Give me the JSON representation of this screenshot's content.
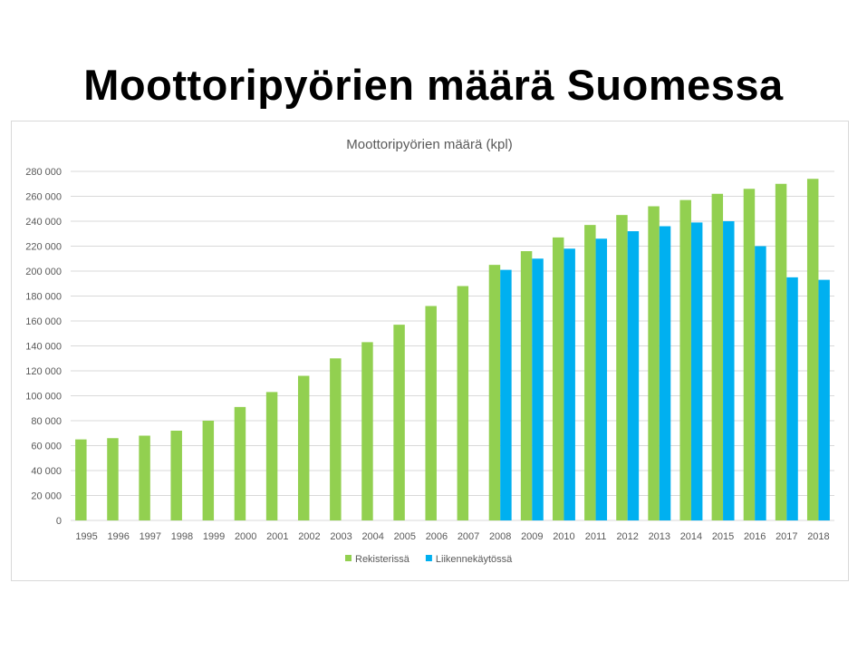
{
  "slide": {
    "title": "Moottoripyörien määrä Suomessa"
  },
  "chart_data": {
    "type": "bar",
    "title": "Moottoripyörien määrä (kpl)",
    "xlabel": "",
    "ylabel": "",
    "ylim": [
      0,
      280000
    ],
    "yticks": [
      "0",
      "20 000",
      "40 000",
      "60 000",
      "80 000",
      "100 000",
      "120 000",
      "140 000",
      "160 000",
      "180 000",
      "200 000",
      "220 000",
      "240 000",
      "260 000",
      "280 000"
    ],
    "grid": true,
    "legend_position": "bottom",
    "categories": [
      "1995",
      "1996",
      "1997",
      "1998",
      "1999",
      "2000",
      "2001",
      "2002",
      "2003",
      "2004",
      "2005",
      "2006",
      "2007",
      "2008",
      "2009",
      "2010",
      "2011",
      "2012",
      "2013",
      "2014",
      "2015",
      "2016",
      "2017",
      "2018"
    ],
    "series": [
      {
        "name": "Rekisterissä",
        "color": "#92d050",
        "values": [
          65000,
          66000,
          68000,
          72000,
          80000,
          91000,
          103000,
          116000,
          130000,
          143000,
          157000,
          172000,
          188000,
          205000,
          216000,
          227000,
          237000,
          245000,
          252000,
          257000,
          262000,
          266000,
          270000,
          274000
        ]
      },
      {
        "name": "Liikennekäytössä",
        "color": "#00b0f0",
        "values": [
          null,
          null,
          null,
          null,
          null,
          null,
          null,
          null,
          null,
          null,
          null,
          null,
          null,
          201000,
          210000,
          218000,
          226000,
          232000,
          236000,
          239000,
          240000,
          220000,
          195000,
          193000
        ]
      }
    ]
  }
}
